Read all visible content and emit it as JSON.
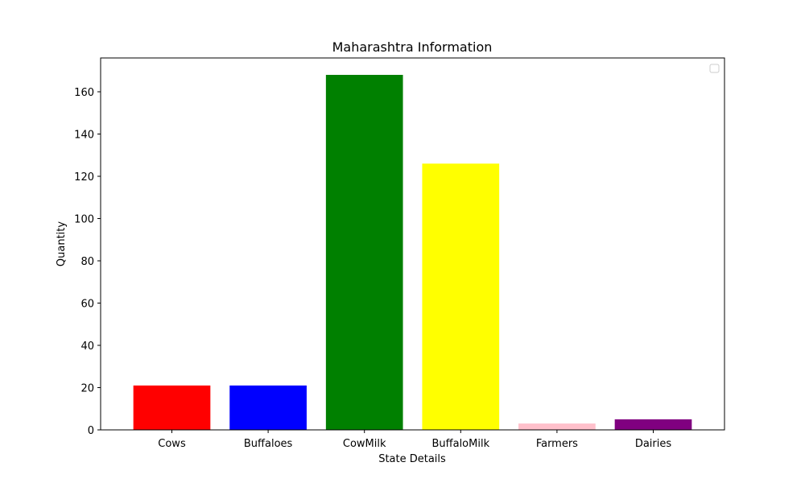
{
  "chart_data": {
    "type": "bar",
    "title": "Maharashtra Information",
    "xlabel": "State Details",
    "ylabel": "Quantity",
    "categories": [
      "Cows",
      "Buffaloes",
      "CowMilk",
      "BuffaloMilk",
      "Farmers",
      "Dairies"
    ],
    "values": [
      21,
      21,
      168,
      126,
      3,
      5
    ],
    "colors": [
      "#ff0000",
      "#0000ff",
      "#008000",
      "#ffff00",
      "#ffc0cb",
      "#800080"
    ],
    "ylim": [
      0,
      176
    ],
    "yticks": [
      0,
      20,
      40,
      60,
      80,
      100,
      120,
      140,
      160
    ],
    "grid": false,
    "legend": {
      "position": "top-right",
      "entries": []
    }
  }
}
